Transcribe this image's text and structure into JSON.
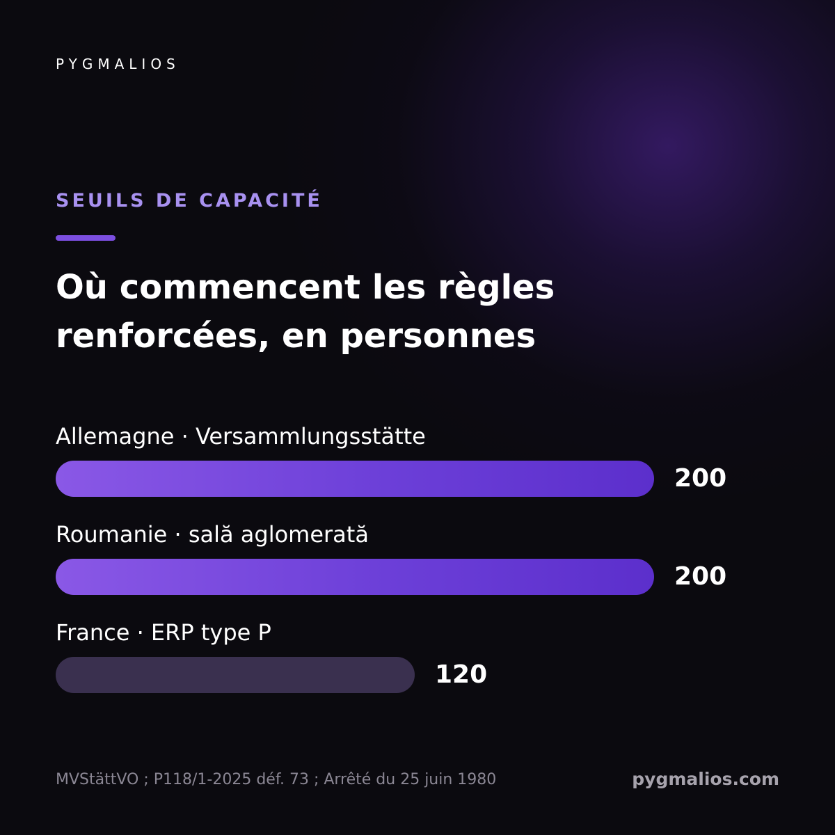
{
  "brand": {
    "logo_text": "PYGMALIOS",
    "website": "pygmalios.com"
  },
  "header": {
    "eyebrow": "SEUILS DE CAPACITÉ",
    "title": "Où commencent les règles renforcées, en personnes"
  },
  "colors": {
    "accent": "#7c4fe0",
    "eyebrow": "#a891f0",
    "bar_highlight": "#6c3fd8",
    "bar_muted": "#3a304f",
    "background": "#0b0a0f"
  },
  "chart_data": {
    "type": "bar",
    "orientation": "horizontal",
    "title": "Où commencent les règles renforcées, en personnes",
    "categories": [
      "Allemagne · Versammlungsstätte",
      "Roumanie · sală aglomerată",
      "France · ERP type P"
    ],
    "values": [
      200,
      200,
      120
    ],
    "highlight": [
      true,
      true,
      false
    ],
    "value_labels": [
      "200",
      "200",
      "120"
    ],
    "xlim": [
      0,
      200
    ],
    "grid": false,
    "legend": "none"
  },
  "footer": {
    "sources": "MVStättVO ; P118/1-2025 déf. 73 ; Arrêté du 25 juin 1980"
  }
}
